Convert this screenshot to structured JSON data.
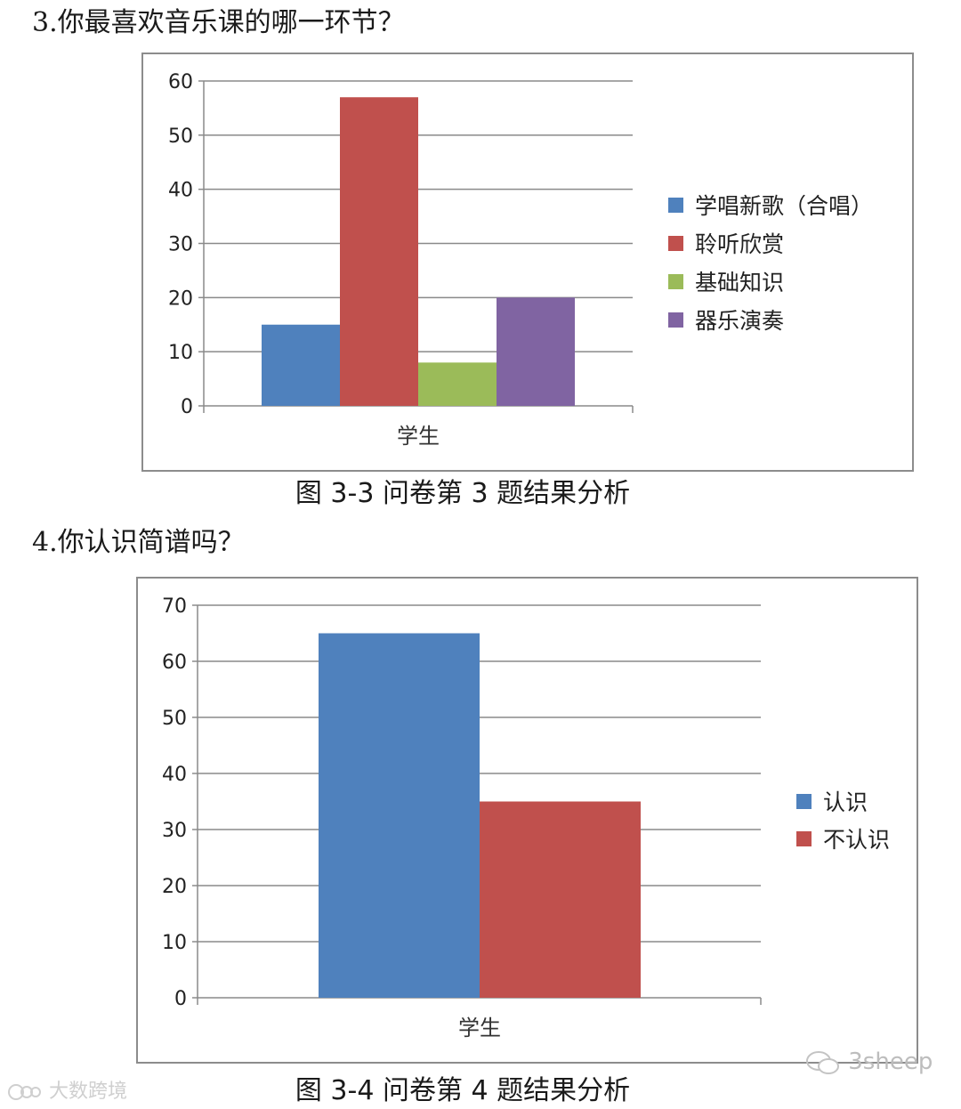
{
  "questions": {
    "q3": "3.你最喜欢音乐课的哪一环节？",
    "q4": "4.你认识简谱吗？"
  },
  "captions": {
    "fig1": "图 3-3  问卷第 3 题结果分析",
    "fig2": "图 3-4  问卷第 4 题结果分析"
  },
  "watermarks": {
    "right": "3sheep",
    "left": "大数跨境"
  },
  "chart_data": [
    {
      "type": "bar",
      "categories": [
        "学生"
      ],
      "series": [
        {
          "name": "学唱新歌（合唱）",
          "values": [
            15
          ],
          "color": "#4f81bd"
        },
        {
          "name": "聆听欣赏",
          "values": [
            57
          ],
          "color": "#c0504d"
        },
        {
          "name": "基础知识",
          "values": [
            8
          ],
          "color": "#9bbb59"
        },
        {
          "name": "器乐演奏",
          "values": [
            20
          ],
          "color": "#8064a2"
        }
      ],
      "ylim": [
        0,
        60
      ],
      "yticks": [
        0,
        10,
        20,
        30,
        40,
        50,
        60
      ],
      "grid": true,
      "legend": "right"
    },
    {
      "type": "bar",
      "categories": [
        "学生"
      ],
      "series": [
        {
          "name": "认识",
          "values": [
            65
          ],
          "color": "#4f81bd"
        },
        {
          "name": "不认识",
          "values": [
            35
          ],
          "color": "#c0504d"
        }
      ],
      "ylim": [
        0,
        70
      ],
      "yticks": [
        0,
        10,
        20,
        30,
        40,
        50,
        60,
        70
      ],
      "grid": true,
      "legend": "right"
    }
  ]
}
